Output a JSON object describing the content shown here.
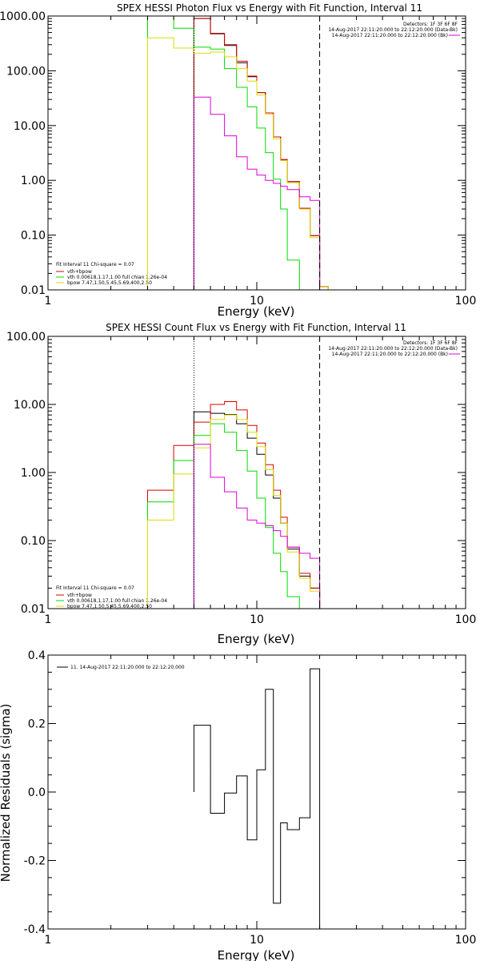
{
  "chart_data": [
    {
      "type": "line",
      "title": "SPEX HESSI Photon Flux vs Energy with Fit Function, Interval 11",
      "xlabel": "Energy (keV)",
      "ylabel": "",
      "xscale": "log",
      "yscale": "log",
      "xlim": [
        1,
        100
      ],
      "ylim": [
        0.01,
        1000
      ],
      "x_ticks": [
        1,
        10,
        100
      ],
      "x_tick_labels": [
        "1",
        "10",
        "100"
      ],
      "y_ticks": [
        0.01,
        0.1,
        1,
        10,
        100,
        1000
      ],
      "y_tick_labels": [
        "0.01",
        "0.10",
        "1.00",
        "10.00",
        "100.00",
        "1000.00"
      ],
      "vlines": [
        {
          "x": 5,
          "style": "dotted",
          "color": "#000000"
        },
        {
          "x": 20,
          "style": "dashed",
          "color": "#000000"
        }
      ],
      "info_lines": [
        "Detectors: 1F 3F 6F 8F",
        "14-Aug-2017 22:11:20.000 to 22:12:20.000 (Data-Bk)",
        "14-Aug-2017 22:11:20.000 to 22:12:20.000 (Bk)"
      ],
      "fit_caption": "Fit Interval 11   Chi-square = 0.07",
      "bin_edges": [
        3,
        4,
        5,
        6,
        7,
        8,
        9,
        10,
        11,
        12,
        13,
        14,
        16,
        18,
        20,
        22,
        25
      ],
      "series": [
        {
          "name": "",
          "color": "#000000",
          "values": [
            null,
            null,
            900,
            480,
            290,
            140,
            78,
            40,
            17,
            6.2,
            2.4,
            0.95,
            0.31,
            0.098,
            0.0115,
            null
          ]
        },
        {
          "name": "vth+bpow",
          "color": "#dd0000",
          "values": [
            null,
            null,
            900,
            470,
            300,
            150,
            80,
            40,
            17,
            6.2,
            2.4,
            0.95,
            0.31,
            0.098,
            0.0115,
            null
          ]
        },
        {
          "name": "vth 0.00618,1.17,1.00  full chian 1.26e-04",
          "color": "#00dd00",
          "values": [
            1000,
            600,
            270,
            250,
            110,
            50,
            22,
            9,
            3.2,
            1.05,
            0.3,
            0.035,
            0.0078,
            null,
            null,
            null
          ]
        },
        {
          "name": "bpow 7.47,1.50,5.45,5.69,400,2.50",
          "color": "#dddd00",
          "values": [
            400,
            260,
            210,
            220,
            180,
            110,
            65,
            36,
            16,
            5.7,
            2.3,
            0.9,
            0.3,
            0.09,
            0.0115,
            0.0082
          ]
        },
        {
          "name": "",
          "color": "#dd00dd",
          "values": [
            null,
            null,
            33,
            16,
            6.5,
            2.7,
            1.6,
            1.25,
            1.0,
            0.88,
            0.78,
            0.68,
            0.5,
            0.43,
            null,
            null
          ]
        }
      ]
    },
    {
      "type": "line",
      "title": "SPEX HESSI Count Flux vs Energy with Fit Function, Interval 11",
      "xlabel": "Energy (keV)",
      "ylabel": "",
      "xscale": "log",
      "yscale": "log",
      "xlim": [
        1,
        100
      ],
      "ylim": [
        0.01,
        100
      ],
      "x_ticks": [
        1,
        10,
        100
      ],
      "x_tick_labels": [
        "1",
        "10",
        "100"
      ],
      "y_ticks": [
        0.01,
        0.1,
        1,
        10,
        100
      ],
      "y_tick_labels": [
        "0.01",
        "0.10",
        "1.00",
        "10.00",
        "100.00"
      ],
      "vlines": [
        {
          "x": 5,
          "style": "dotted",
          "color": "#000000"
        },
        {
          "x": 20,
          "style": "dashed",
          "color": "#000000"
        }
      ],
      "info_lines": [
        "Detectors: 1F 3F 6F 8F",
        "14-Aug-2017 22:11:20.000 to 22:12:20.000 (Data-Bk)",
        "14-Aug-2017 22:11:20.000 to 22:12:20.000 (Bk)"
      ],
      "fit_caption": "Fit Interval 11   Chi-square = 0.07",
      "bin_edges": [
        3,
        4,
        5,
        6,
        7,
        8,
        9,
        10,
        11,
        12,
        13,
        14,
        16,
        18,
        20,
        22,
        25
      ],
      "series": [
        {
          "name": "",
          "color": "#000000",
          "values": [
            null,
            null,
            7.8,
            7.4,
            7.1,
            5.2,
            3.2,
            1.85,
            0.92,
            0.42,
            0.18,
            0.075,
            0.03,
            0.02,
            null,
            null
          ]
        },
        {
          "name": "vth+bpow",
          "color": "#dd0000",
          "values": [
            0.55,
            2.5,
            5.5,
            10.0,
            11.0,
            8.3,
            4.9,
            2.7,
            1.3,
            0.55,
            0.22,
            0.08,
            0.033,
            0.02,
            null,
            null
          ]
        },
        {
          "name": "vth 0.00618,1.17,1.00  full chian 1.26e-04",
          "color": "#00dd00",
          "values": [
            0.37,
            1.5,
            3.5,
            5.2,
            3.9,
            2.1,
            1.05,
            0.42,
            0.155,
            0.065,
            0.035,
            0.015,
            null,
            null,
            null,
            null
          ]
        },
        {
          "name": "bpow 7.47,1.50,5.45,5.69,400,2.50",
          "color": "#dddd00",
          "values": [
            0.2,
            0.95,
            2.3,
            6.0,
            7.0,
            6.0,
            3.9,
            2.4,
            1.1,
            0.46,
            0.18,
            0.068,
            0.028,
            0.018,
            null,
            null
          ]
        },
        {
          "name": "",
          "color": "#dd00dd",
          "values": [
            null,
            null,
            2.6,
            0.85,
            0.52,
            0.3,
            0.2,
            0.18,
            0.165,
            0.14,
            0.115,
            0.08,
            0.065,
            0.055,
            null,
            null
          ]
        }
      ]
    },
    {
      "type": "line",
      "title": "",
      "xlabel": "Energy (keV)",
      "ylabel": "Normalized Residuals (sigma)",
      "xscale": "log",
      "yscale": "linear",
      "xlim": [
        1,
        100
      ],
      "ylim": [
        -0.4,
        0.4
      ],
      "x_ticks": [
        1,
        10,
        100
      ],
      "x_tick_labels": [
        "1",
        "10",
        "100"
      ],
      "y_ticks": [
        -0.4,
        -0.2,
        0.0,
        0.2,
        0.4
      ],
      "y_tick_labels": [
        "-0.4",
        "-0.2",
        "0.0",
        "0.2",
        "0.4"
      ],
      "legend": "11. 14-Aug-2017 22:11:20.000 to 22:12:20.000",
      "bin_edges": [
        5,
        6,
        7,
        8,
        9,
        10,
        11,
        12,
        13,
        14,
        16,
        18,
        20
      ],
      "series": [
        {
          "name": "11. 14-Aug-2017 22:11:20.000 to 22:12:20.000",
          "color": "#000000",
          "values": [
            0.195,
            -0.062,
            -0.003,
            0.047,
            -0.14,
            0.065,
            0.3,
            -0.325,
            -0.09,
            -0.11,
            -0.075,
            0.36
          ]
        }
      ]
    }
  ]
}
